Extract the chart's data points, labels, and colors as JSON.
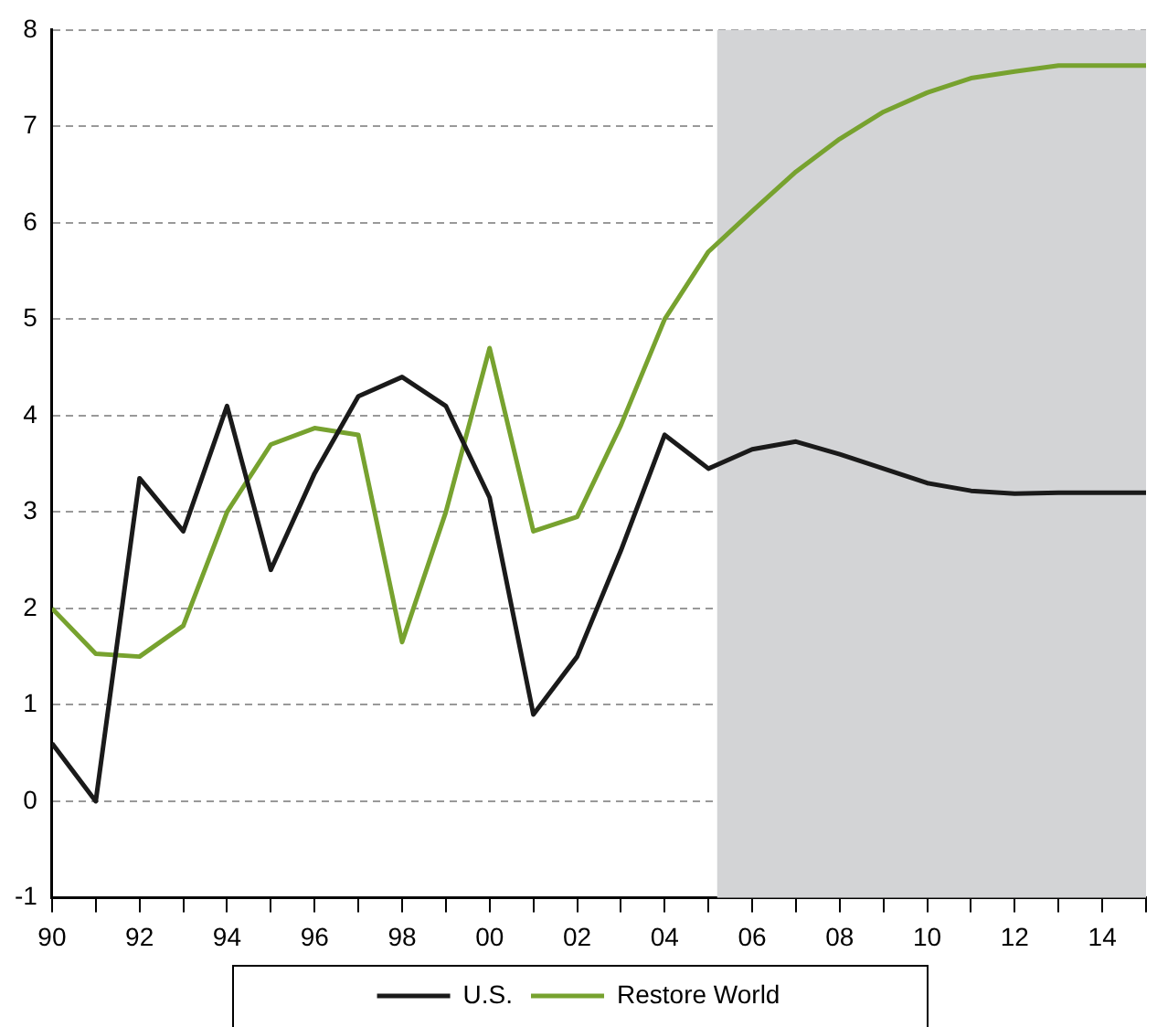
{
  "chart_data": {
    "type": "line",
    "x": [
      1990,
      1991,
      1992,
      1993,
      1994,
      1995,
      1996,
      1997,
      1998,
      1999,
      2000,
      2001,
      2002,
      2003,
      2004,
      2005,
      2006,
      2007,
      2008,
      2009,
      2010,
      2011,
      2012,
      2013,
      2014,
      2015
    ],
    "series": [
      {
        "name": "U.S.",
        "color": "#1a1a1a",
        "values": [
          0.6,
          0.0,
          3.35,
          2.8,
          4.1,
          2.4,
          3.4,
          4.2,
          4.4,
          4.1,
          3.15,
          0.9,
          1.5,
          2.6,
          3.8,
          3.45,
          3.65,
          3.73,
          3.6,
          3.45,
          3.3,
          3.22,
          3.19,
          3.2,
          3.2,
          3.2
        ]
      },
      {
        "name": "Restore World",
        "color": "#77a22f",
        "values": [
          2.0,
          1.53,
          1.5,
          1.82,
          3.0,
          3.7,
          3.87,
          3.8,
          1.65,
          3.0,
          4.7,
          2.8,
          2.95,
          3.9,
          5.0,
          5.7,
          6.12,
          6.53,
          6.87,
          7.15,
          7.35,
          7.5,
          7.57,
          7.63,
          7.63,
          7.63
        ]
      }
    ],
    "xlim": [
      1990,
      2015
    ],
    "xticks": [
      {
        "value": 1990,
        "label": "90"
      },
      {
        "value": 1991,
        "label": null
      },
      {
        "value": 1992,
        "label": "92"
      },
      {
        "value": 1993,
        "label": null
      },
      {
        "value": 1994,
        "label": "94"
      },
      {
        "value": 1995,
        "label": null
      },
      {
        "value": 1996,
        "label": "96"
      },
      {
        "value": 1997,
        "label": null
      },
      {
        "value": 1998,
        "label": "98"
      },
      {
        "value": 1999,
        "label": null
      },
      {
        "value": 2000,
        "label": "00"
      },
      {
        "value": 2001,
        "label": null
      },
      {
        "value": 2002,
        "label": "02"
      },
      {
        "value": 2003,
        "label": null
      },
      {
        "value": 2004,
        "label": "04"
      },
      {
        "value": 2005,
        "label": null
      },
      {
        "value": 2006,
        "label": "06"
      },
      {
        "value": 2007,
        "label": null
      },
      {
        "value": 2008,
        "label": "08"
      },
      {
        "value": 2009,
        "label": null
      },
      {
        "value": 2010,
        "label": "10"
      },
      {
        "value": 2011,
        "label": null
      },
      {
        "value": 2012,
        "label": "12"
      },
      {
        "value": 2013,
        "label": null
      },
      {
        "value": 2014,
        "label": "14"
      },
      {
        "value": 2015,
        "label": null
      }
    ],
    "ylim": [
      -1,
      8
    ],
    "yticks": [
      -1,
      0,
      1,
      2,
      3,
      4,
      5,
      6,
      7,
      8
    ],
    "bands": [
      {
        "axis": "x",
        "from": 2005.2,
        "to": 2015,
        "color": "#d3d4d6"
      }
    ],
    "grid": "y",
    "legend": "bottom",
    "marker": "none",
    "line_style": "solid"
  }
}
